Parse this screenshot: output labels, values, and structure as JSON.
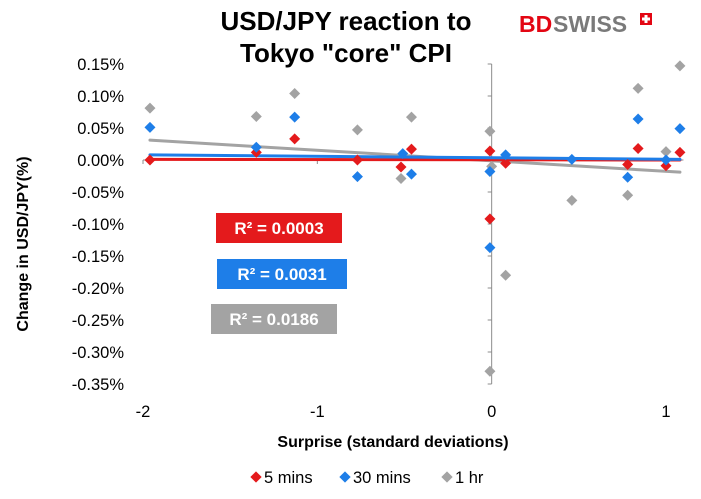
{
  "chart_data": {
    "type": "scatter",
    "title_lines": [
      "USD/JPY reaction to",
      "Tokyo \"core\" CPI"
    ],
    "xlabel": "Surprise (standard deviations)",
    "ylabel": "Change in USD/JPY(%)",
    "xlim": [
      -2,
      1.1
    ],
    "ylim": [
      -0.35,
      0.15
    ],
    "x_ticks": [
      -2,
      -1,
      0,
      1
    ],
    "x_tick_labels": [
      "-2",
      "-1",
      "0",
      "1"
    ],
    "y_ticks": [
      0.15,
      0.1,
      0.05,
      0.0,
      -0.05,
      -0.1,
      -0.15,
      -0.2,
      -0.25,
      -0.3,
      -0.35
    ],
    "y_tick_labels": [
      "0.15%",
      "0.10%",
      "0.05%",
      "0.00%",
      "-0.05%",
      "-0.10%",
      "-0.15%",
      "-0.20%",
      "-0.25%",
      "-0.30%",
      "-0.35%"
    ],
    "grid": false,
    "legend_position": "bottom",
    "series": [
      {
        "name": "5 mins",
        "color": "#e41a1c",
        "marker": "diamond",
        "points": [
          {
            "x": -1.96,
            "y": 0.0
          },
          {
            "x": -1.35,
            "y": 0.012
          },
          {
            "x": -1.13,
            "y": 0.033
          },
          {
            "x": -0.77,
            "y": 0.0
          },
          {
            "x": -0.52,
            "y": -0.011
          },
          {
            "x": -0.46,
            "y": 0.017
          },
          {
            "x": -0.01,
            "y": 0.014
          },
          {
            "x": -0.01,
            "y": -0.092
          },
          {
            "x": 0.08,
            "y": -0.005
          },
          {
            "x": 0.78,
            "y": -0.007
          },
          {
            "x": 0.84,
            "y": 0.018
          },
          {
            "x": 1.0,
            "y": -0.009
          },
          {
            "x": 1.08,
            "y": 0.012
          }
        ],
        "trend": {
          "x": [
            -1.96,
            1.08
          ],
          "y": [
            0.001,
            0.0
          ],
          "r2_label": "R² = 0.0003"
        }
      },
      {
        "name": "30 mins",
        "color": "#1e7ee8",
        "marker": "diamond",
        "points": [
          {
            "x": -1.96,
            "y": 0.051
          },
          {
            "x": -1.35,
            "y": 0.02
          },
          {
            "x": -1.13,
            "y": 0.067
          },
          {
            "x": -0.77,
            "y": -0.026
          },
          {
            "x": -0.51,
            "y": 0.01
          },
          {
            "x": -0.46,
            "y": -0.022
          },
          {
            "x": -0.01,
            "y": -0.137
          },
          {
            "x": -0.01,
            "y": -0.018
          },
          {
            "x": 0.08,
            "y": 0.008
          },
          {
            "x": 0.46,
            "y": 0.001
          },
          {
            "x": 0.78,
            "y": -0.027
          },
          {
            "x": 0.84,
            "y": 0.064
          },
          {
            "x": 1.0,
            "y": 0.0
          },
          {
            "x": 1.08,
            "y": 0.049
          }
        ],
        "trend": {
          "x": [
            -1.96,
            1.08
          ],
          "y": [
            0.008,
            0.001
          ],
          "r2_label": "R² = 0.0031"
        }
      },
      {
        "name": "1 hr",
        "color": "#a3a3a3",
        "marker": "diamond",
        "points": [
          {
            "x": -1.96,
            "y": 0.081
          },
          {
            "x": -1.35,
            "y": 0.068
          },
          {
            "x": -1.13,
            "y": 0.104
          },
          {
            "x": -0.77,
            "y": 0.047
          },
          {
            "x": -0.52,
            "y": -0.029
          },
          {
            "x": -0.46,
            "y": 0.067
          },
          {
            "x": -0.01,
            "y": 0.045
          },
          {
            "x": -0.01,
            "y": -0.33
          },
          {
            "x": 0.0,
            "y": -0.01
          },
          {
            "x": 0.08,
            "y": -0.18
          },
          {
            "x": 0.46,
            "y": -0.063
          },
          {
            "x": 0.78,
            "y": -0.055
          },
          {
            "x": 0.84,
            "y": 0.112
          },
          {
            "x": 1.0,
            "y": 0.013
          },
          {
            "x": 1.08,
            "y": 0.147
          }
        ],
        "trend": {
          "x": [
            -1.96,
            1.08
          ],
          "y": [
            0.031,
            -0.019
          ],
          "r2_label": "R² = 0.0186"
        }
      }
    ]
  },
  "brand": {
    "logo_text_bd": "BD",
    "logo_text_swiss": "SWISS",
    "logo_red": "#e30613",
    "logo_grey": "#7a7a7a"
  }
}
